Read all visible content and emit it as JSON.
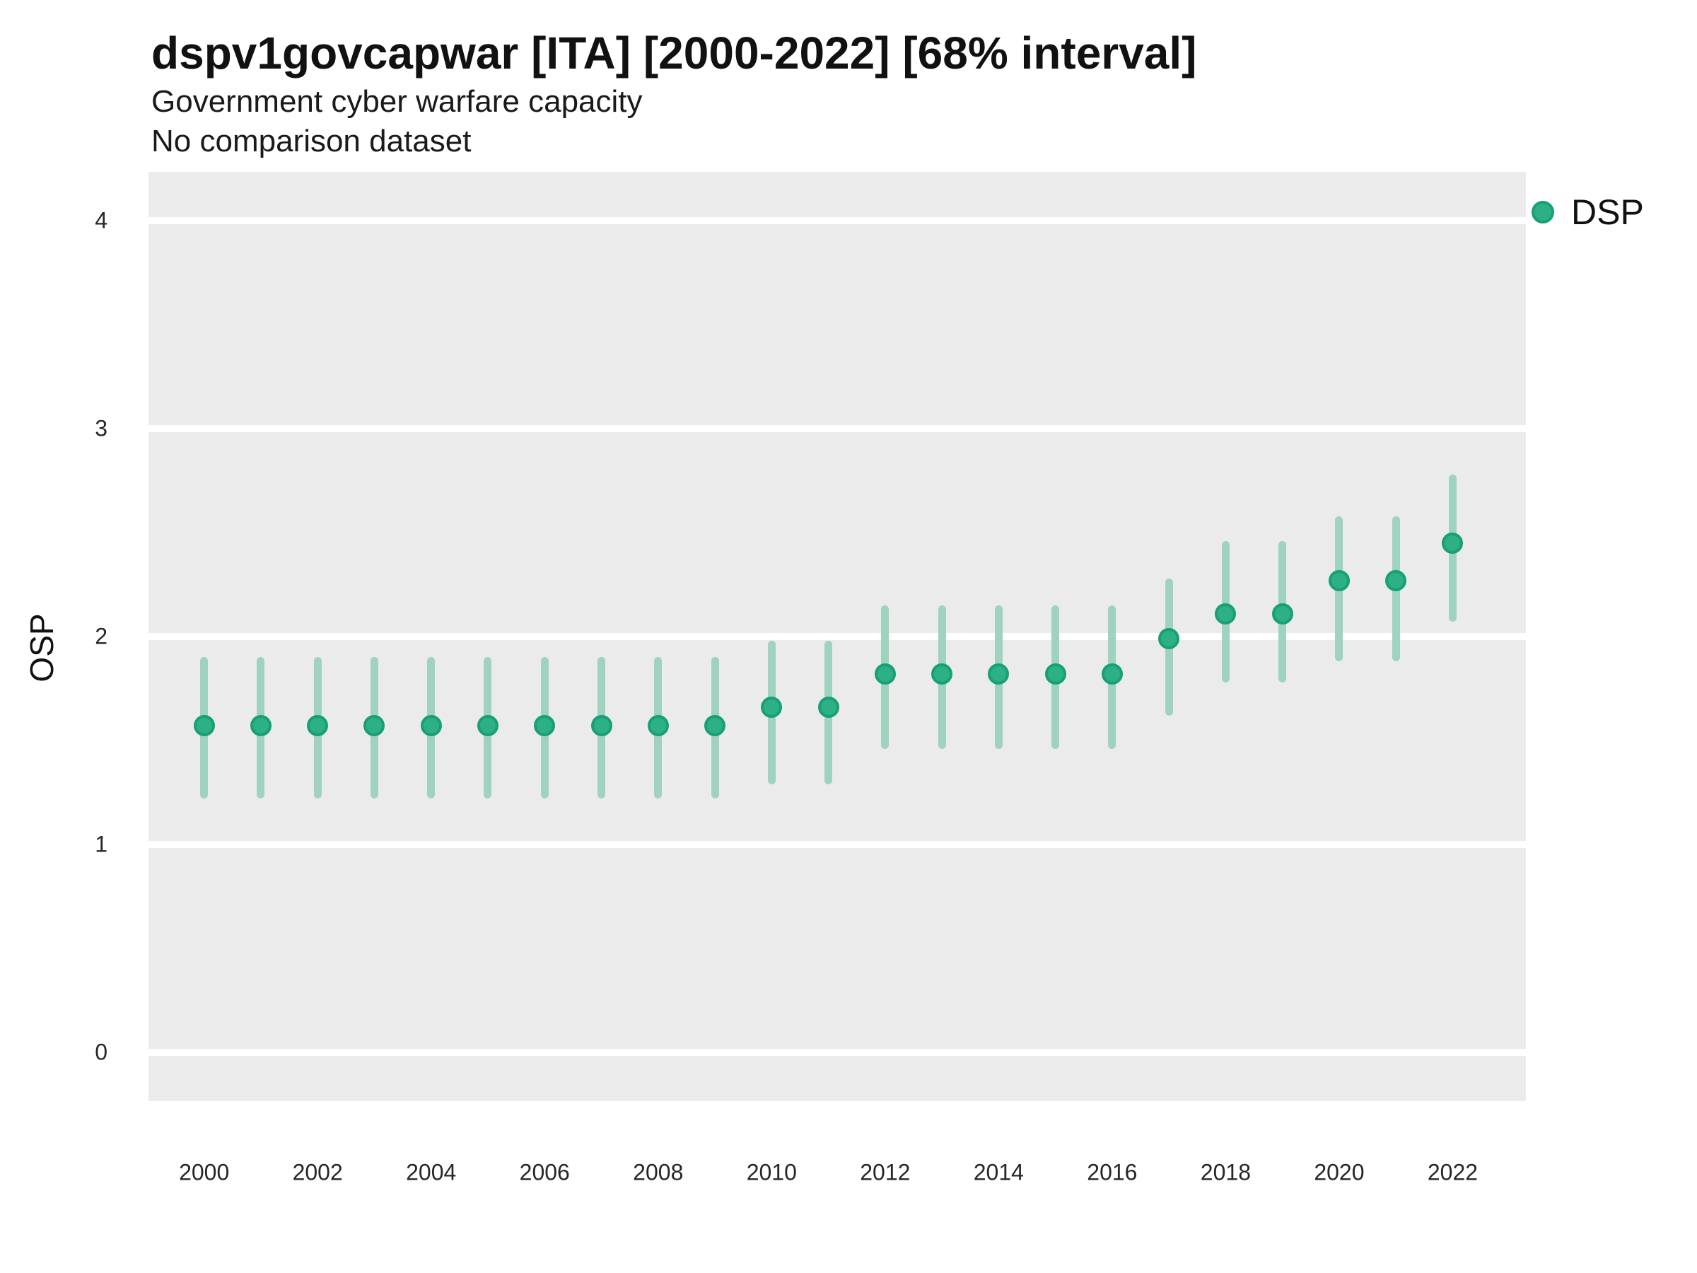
{
  "header": {
    "title": "dspv1govcapwar [ITA] [2000-2022] [68% interval]",
    "subtitle_line1": "Government cyber warfare capacity",
    "subtitle_line2": "No comparison dataset"
  },
  "legend": {
    "label": "DSP"
  },
  "colors": {
    "panel_background": "#EBEBEB",
    "gridline": "#FFFFFF",
    "point_fill": "#2EB086",
    "point_ring": "#17A076",
    "interval_line": "#9FD3C0",
    "text": "#111111"
  },
  "chart_data": {
    "type": "scatter",
    "title": "dspv1govcapwar [ITA] [2000-2022] [68% interval]",
    "subtitle": [
      "Government cyber warfare capacity",
      "No comparison dataset"
    ],
    "xlabel": "",
    "ylabel": "OSP",
    "interval": "68%",
    "grid": "horizontal-only",
    "legend_position": "right",
    "xlim": [
      1999.02,
      2023.29
    ],
    "ylim": [
      -0.235,
      4.235
    ],
    "yticks": [
      0,
      1,
      2,
      3,
      4
    ],
    "xticks": [
      2000,
      2002,
      2004,
      2006,
      2008,
      2010,
      2012,
      2014,
      2016,
      2018,
      2020,
      2022
    ],
    "series": [
      {
        "name": "DSP",
        "points": [
          {
            "year": 2000,
            "value": 1.57,
            "lo": 1.22,
            "hi": 1.9
          },
          {
            "year": 2001,
            "value": 1.57,
            "lo": 1.22,
            "hi": 1.9
          },
          {
            "year": 2002,
            "value": 1.57,
            "lo": 1.22,
            "hi": 1.9
          },
          {
            "year": 2003,
            "value": 1.57,
            "lo": 1.22,
            "hi": 1.9
          },
          {
            "year": 2004,
            "value": 1.57,
            "lo": 1.22,
            "hi": 1.9
          },
          {
            "year": 2005,
            "value": 1.57,
            "lo": 1.22,
            "hi": 1.9
          },
          {
            "year": 2006,
            "value": 1.57,
            "lo": 1.22,
            "hi": 1.9
          },
          {
            "year": 2007,
            "value": 1.57,
            "lo": 1.22,
            "hi": 1.9
          },
          {
            "year": 2008,
            "value": 1.57,
            "lo": 1.22,
            "hi": 1.9
          },
          {
            "year": 2009,
            "value": 1.57,
            "lo": 1.22,
            "hi": 1.9
          },
          {
            "year": 2010,
            "value": 1.66,
            "lo": 1.29,
            "hi": 1.98
          },
          {
            "year": 2011,
            "value": 1.66,
            "lo": 1.29,
            "hi": 1.98
          },
          {
            "year": 2012,
            "value": 1.82,
            "lo": 1.46,
            "hi": 2.15
          },
          {
            "year": 2013,
            "value": 1.82,
            "lo": 1.46,
            "hi": 2.15
          },
          {
            "year": 2014,
            "value": 1.82,
            "lo": 1.46,
            "hi": 2.15
          },
          {
            "year": 2015,
            "value": 1.82,
            "lo": 1.46,
            "hi": 2.15
          },
          {
            "year": 2016,
            "value": 1.82,
            "lo": 1.46,
            "hi": 2.15
          },
          {
            "year": 2017,
            "value": 1.99,
            "lo": 1.62,
            "hi": 2.28
          },
          {
            "year": 2018,
            "value": 2.11,
            "lo": 1.78,
            "hi": 2.46
          },
          {
            "year": 2019,
            "value": 2.11,
            "lo": 1.78,
            "hi": 2.46
          },
          {
            "year": 2020,
            "value": 2.27,
            "lo": 1.88,
            "hi": 2.58
          },
          {
            "year": 2021,
            "value": 2.27,
            "lo": 1.88,
            "hi": 2.58
          },
          {
            "year": 2022,
            "value": 2.45,
            "lo": 2.07,
            "hi": 2.78
          }
        ]
      }
    ]
  }
}
